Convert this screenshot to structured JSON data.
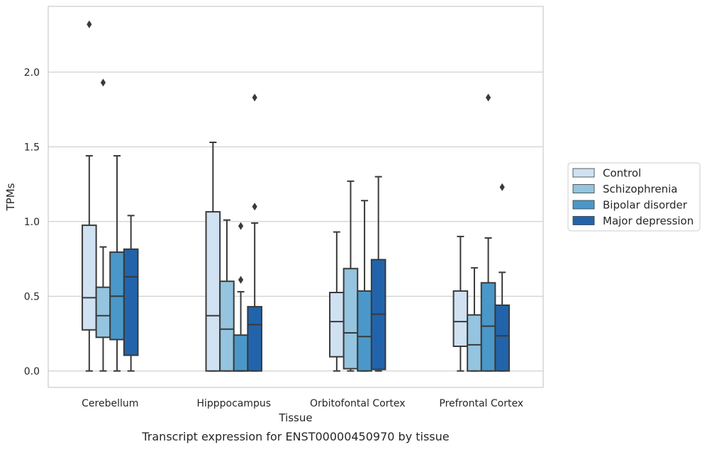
{
  "caption": "Transcript expression for ENST00000450970 by tissue",
  "colors": {
    "Control": "#d0e1f2",
    "Schizophrenia": "#94c4df",
    "Bipolar disorder": "#4a98c9",
    "Major depression": "#2164ab",
    "grid": "#cccccc",
    "frame": "#cccccc",
    "line": "#3a3a3a"
  },
  "chart_data": {
    "type": "box",
    "title": "",
    "xlabel": "Tissue",
    "ylabel": "TPMs",
    "ylim": [
      -0.11,
      2.44
    ],
    "yticks": [
      0.0,
      0.5,
      1.0,
      1.5,
      2.0
    ],
    "ytick_labels": [
      "0.0",
      "0.5",
      "1.0",
      "1.5",
      "2.0"
    ],
    "grid": "horizontal",
    "legend_position": "right",
    "categories": [
      "Cerebellum",
      "Hipppocampus",
      "Orbitofontal Cortex",
      "Prefrontal Cortex"
    ],
    "series": [
      {
        "name": "Control",
        "boxes": [
          {
            "whisker_low": 0.0,
            "q1": 0.275,
            "median": 0.49,
            "q3": 0.975,
            "whisker_high": 1.44,
            "outliers": [
              2.32
            ]
          },
          {
            "whisker_low": 0.0,
            "q1": 0.0,
            "median": 0.37,
            "q3": 1.065,
            "whisker_high": 1.53,
            "outliers": []
          },
          {
            "whisker_low": 0.0,
            "q1": 0.095,
            "median": 0.33,
            "q3": 0.525,
            "whisker_high": 0.93,
            "outliers": []
          },
          {
            "whisker_low": 0.0,
            "q1": 0.165,
            "median": 0.33,
            "q3": 0.535,
            "whisker_high": 0.9,
            "outliers": []
          }
        ]
      },
      {
        "name": "Schizophrenia",
        "boxes": [
          {
            "whisker_low": 0.0,
            "q1": 0.225,
            "median": 0.37,
            "q3": 0.56,
            "whisker_high": 0.83,
            "outliers": [
              1.93
            ]
          },
          {
            "whisker_low": 0.0,
            "q1": 0.0,
            "median": 0.28,
            "q3": 0.6,
            "whisker_high": 1.01,
            "outliers": []
          },
          {
            "whisker_low": 0.0,
            "q1": 0.015,
            "median": 0.255,
            "q3": 0.685,
            "whisker_high": 1.27,
            "outliers": []
          },
          {
            "whisker_low": 0.0,
            "q1": 0.0,
            "median": 0.175,
            "q3": 0.375,
            "whisker_high": 0.69,
            "outliers": []
          }
        ]
      },
      {
        "name": "Bipolar disorder",
        "boxes": [
          {
            "whisker_low": 0.0,
            "q1": 0.21,
            "median": 0.5,
            "q3": 0.795,
            "whisker_high": 1.44,
            "outliers": []
          },
          {
            "whisker_low": 0.0,
            "q1": 0.0,
            "median": 0.0,
            "q3": 0.24,
            "whisker_high": 0.53,
            "outliers": [
              0.61,
              0.97
            ]
          },
          {
            "whisker_low": 0.0,
            "q1": 0.0,
            "median": 0.23,
            "q3": 0.535,
            "whisker_high": 1.14,
            "outliers": []
          },
          {
            "whisker_low": 0.0,
            "q1": 0.0,
            "median": 0.3,
            "q3": 0.59,
            "whisker_high": 0.89,
            "outliers": [
              1.83
            ]
          }
        ]
      },
      {
        "name": "Major depression",
        "boxes": [
          {
            "whisker_low": 0.0,
            "q1": 0.105,
            "median": 0.63,
            "q3": 0.815,
            "whisker_high": 1.04,
            "outliers": []
          },
          {
            "whisker_low": 0.0,
            "q1": 0.0,
            "median": 0.31,
            "q3": 0.43,
            "whisker_high": 0.99,
            "outliers": [
              1.1,
              1.83
            ]
          },
          {
            "whisker_low": 0.0,
            "q1": 0.01,
            "median": 0.38,
            "q3": 0.745,
            "whisker_high": 1.3,
            "outliers": []
          },
          {
            "whisker_low": 0.0,
            "q1": 0.0,
            "median": 0.235,
            "q3": 0.44,
            "whisker_high": 0.66,
            "outliers": [
              1.23
            ]
          }
        ]
      }
    ]
  }
}
